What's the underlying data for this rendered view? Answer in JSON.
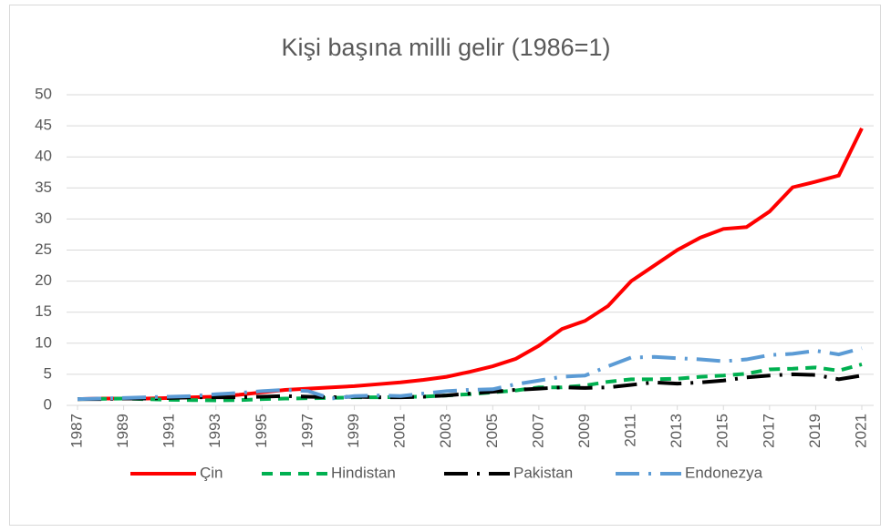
{
  "chart_data": {
    "type": "line",
    "title": "Kişi başına milli gelir (1986=1)",
    "x": [
      1987,
      1988,
      1989,
      1990,
      1991,
      1992,
      1993,
      1994,
      1995,
      1996,
      1997,
      1998,
      1999,
      2000,
      2001,
      2002,
      2003,
      2004,
      2005,
      2006,
      2007,
      2008,
      2009,
      2010,
      2011,
      2012,
      2013,
      2014,
      2015,
      2016,
      2017,
      2018,
      2019,
      2020,
      2021
    ],
    "xlim": [
      1987,
      2021
    ],
    "xticks": [
      1987,
      1989,
      1991,
      1993,
      1995,
      1997,
      1999,
      2001,
      2003,
      2005,
      2007,
      2009,
      2011,
      2013,
      2015,
      2017,
      2019,
      2021
    ],
    "ylim": [
      0,
      50
    ],
    "yticks": [
      0,
      5,
      10,
      15,
      20,
      25,
      30,
      35,
      40,
      45,
      50
    ],
    "grid": true,
    "legend": "bottom",
    "series": [
      {
        "name": "Çin",
        "color": "#ff0000",
        "style": "solid",
        "values": [
          1.0,
          1.1,
          1.1,
          1.1,
          1.2,
          1.3,
          1.4,
          1.7,
          2.1,
          2.5,
          2.7,
          2.9,
          3.1,
          3.4,
          3.7,
          4.1,
          4.6,
          5.4,
          6.3,
          7.5,
          9.6,
          12.3,
          13.6,
          16.0,
          20.0,
          22.5,
          25.0,
          27.0,
          28.4,
          28.7,
          31.2,
          35.1,
          36.0,
          37.0,
          44.6
        ]
      },
      {
        "name": "Hindistan",
        "color": "#00b050",
        "style": "dash",
        "values": [
          1.0,
          1.05,
          1.1,
          1.0,
          0.9,
          0.85,
          0.8,
          0.85,
          1.0,
          1.1,
          1.15,
          1.2,
          1.3,
          1.3,
          1.35,
          1.4,
          1.6,
          1.8,
          2.1,
          2.4,
          2.9,
          2.9,
          3.2,
          3.8,
          4.2,
          4.2,
          4.3,
          4.6,
          4.8,
          5.1,
          5.8,
          5.9,
          6.1,
          5.6,
          6.6
        ]
      },
      {
        "name": "Pakistan",
        "color": "#000000",
        "style": "longdashdot",
        "values": [
          1.0,
          1.0,
          1.1,
          1.1,
          1.2,
          1.3,
          1.3,
          1.3,
          1.4,
          1.5,
          1.4,
          1.3,
          1.4,
          1.3,
          1.3,
          1.4,
          1.6,
          1.9,
          2.2,
          2.5,
          2.7,
          2.9,
          2.8,
          2.9,
          3.3,
          3.7,
          3.5,
          3.7,
          4.0,
          4.5,
          4.8,
          5.0,
          4.9,
          4.2,
          4.8
        ]
      },
      {
        "name": "Endonezya",
        "color": "#5b9bd5",
        "style": "longdashdot",
        "values": [
          1.0,
          1.1,
          1.2,
          1.3,
          1.4,
          1.5,
          1.8,
          2.0,
          2.3,
          2.5,
          2.3,
          1.1,
          1.5,
          1.6,
          1.5,
          1.9,
          2.3,
          2.5,
          2.6,
          3.4,
          4.0,
          4.6,
          4.8,
          6.3,
          7.7,
          7.8,
          7.6,
          7.4,
          7.1,
          7.4,
          8.1,
          8.3,
          8.8,
          8.2,
          9.2
        ]
      }
    ]
  }
}
